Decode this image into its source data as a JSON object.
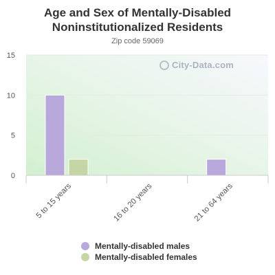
{
  "title_line1": "Age and Sex of Mentally-Disabled",
  "title_line2": "Noninstitutionalized Residents",
  "subtitle": "Zip code 59069",
  "watermark": "City-Data.com",
  "colors": {
    "males": "#b9a8dc",
    "females": "#c3d6a4"
  },
  "chart_data": {
    "type": "bar",
    "categories": [
      "5 to 15 years",
      "16 to 20 years",
      "21 to 64 years"
    ],
    "series": [
      {
        "name": "Mentally-disabled males",
        "values": [
          10,
          0,
          2
        ]
      },
      {
        "name": "Mentally-disabled females",
        "values": [
          2,
          0,
          0
        ]
      }
    ],
    "ylim": [
      0,
      15
    ],
    "yticks": [
      0,
      5,
      10,
      15
    ],
    "grid": true,
    "legend": "bottom"
  }
}
